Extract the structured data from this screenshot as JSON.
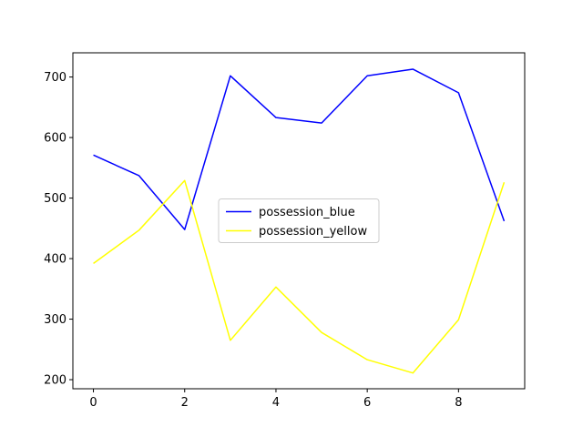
{
  "chart_data": {
    "type": "line",
    "x": [
      0,
      1,
      2,
      3,
      4,
      5,
      6,
      7,
      8,
      9
    ],
    "series": [
      {
        "name": "possession_blue",
        "color": "#0000ff",
        "values": [
          571,
          537,
          448,
          702,
          633,
          624,
          702,
          713,
          674,
          462
        ]
      },
      {
        "name": "possession_yellow",
        "color": "#ffff00",
        "values": [
          392,
          447,
          529,
          265,
          353,
          278,
          233,
          211,
          299,
          526
        ]
      }
    ],
    "xlim": [
      -0.45,
      9.45
    ],
    "ylim": [
      185,
      740
    ],
    "xticks": [
      0,
      2,
      4,
      6,
      8
    ],
    "yticks": [
      200,
      300,
      400,
      500,
      600,
      700
    ],
    "grid": false,
    "legend": "center"
  }
}
